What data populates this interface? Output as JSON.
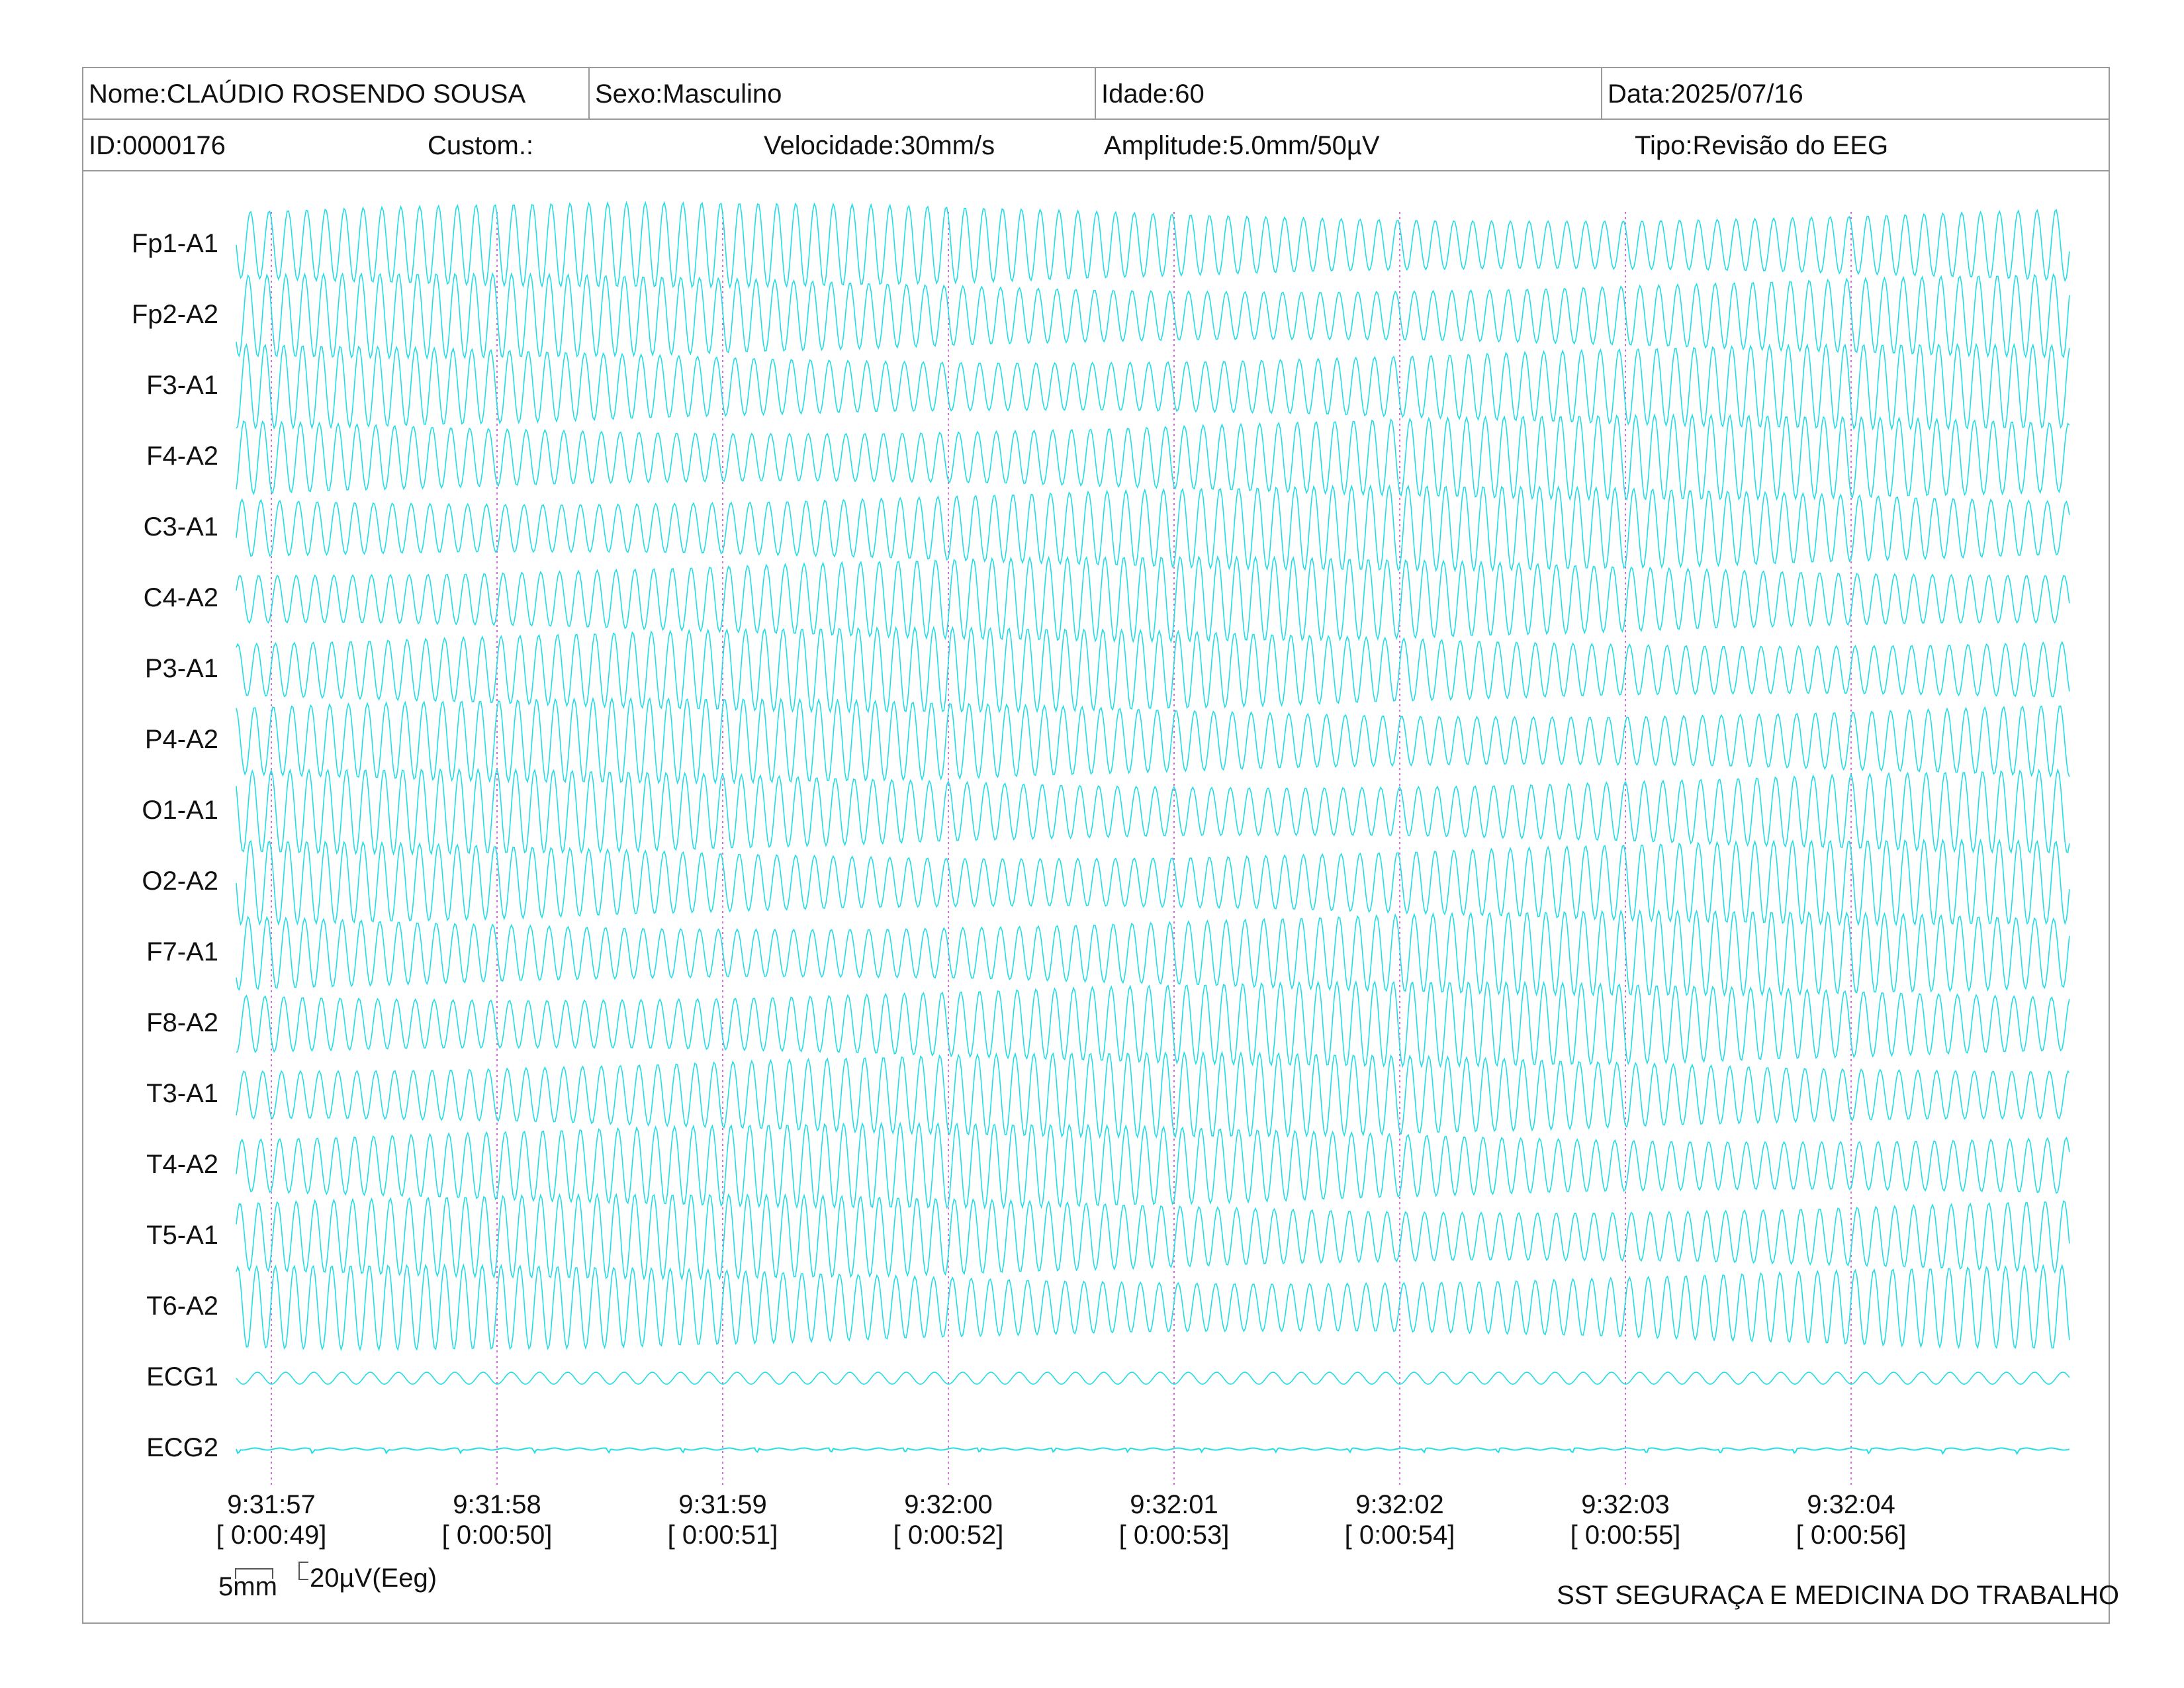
{
  "header": {
    "name": "Nome:CLAÚDIO ROSENDO SOUSA",
    "sex": "Sexo:Masculino",
    "age": "Idade:60",
    "date": "Data:2025/07/16",
    "id": "ID:0000176",
    "custom": "Custom.:",
    "speed": "Velocidade:30mm/s",
    "amplitude": "Amplitude:5.0mm/50µV",
    "type": "Tipo:Revisão do EEG"
  },
  "footer": {
    "scale_mm": "5mm",
    "scale_uv": "20µV(Eeg)",
    "company": "SST SEGURAÇA E MEDICINA DO TRABALHO"
  },
  "colors": {
    "trace": "#22dde6",
    "gridline": "#d36bd8",
    "border": "#9a9a9a"
  },
  "chart_data": {
    "type": "line",
    "title": "",
    "channels": [
      "Fp1-A1",
      "Fp2-A2",
      "F3-A1",
      "F4-A2",
      "C3-A1",
      "C4-A2",
      "P3-A1",
      "P4-A2",
      "O1-A1",
      "O2-A2",
      "F7-A1",
      "F8-A2",
      "T3-A1",
      "T4-A2",
      "T5-A1",
      "T6-A2",
      "ECG1",
      "ECG2"
    ],
    "time_ticks": [
      {
        "clock": "9:31:57",
        "elapsed": "[ 0:00:49]"
      },
      {
        "clock": "9:31:58",
        "elapsed": "[ 0:00:50]"
      },
      {
        "clock": "9:31:59",
        "elapsed": "[ 0:00:51]"
      },
      {
        "clock": "9:32:00",
        "elapsed": "[ 0:00:52]"
      },
      {
        "clock": "9:32:01",
        "elapsed": "[ 0:00:53]"
      },
      {
        "clock": "9:32:02",
        "elapsed": "[ 0:00:54]"
      },
      {
        "clock": "9:32:03",
        "elapsed": "[ 0:00:55]"
      },
      {
        "clock": "9:32:04",
        "elapsed": "[ 0:00:56]"
      }
    ],
    "eeg_wave_frequency_hz": 12,
    "ecg1_wave_frequency_hz": 8,
    "gridlines": "vertical dotted at each second"
  }
}
